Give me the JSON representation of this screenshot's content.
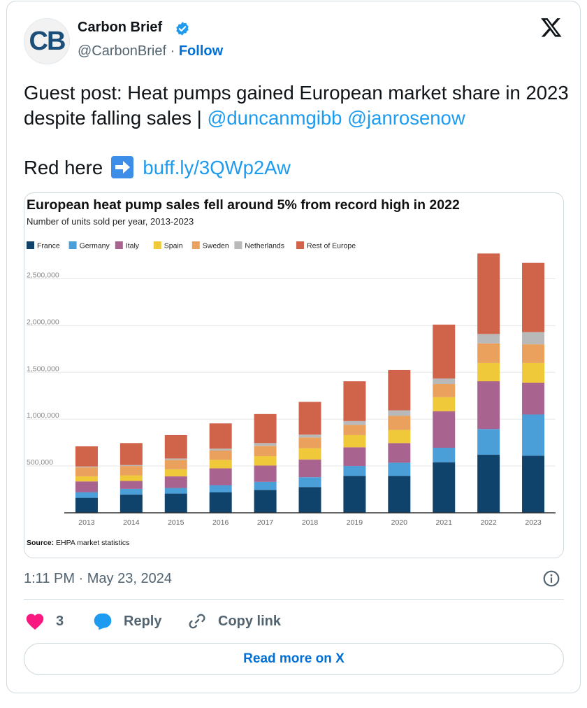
{
  "author": {
    "name": "Carbon Brief",
    "avatar_initials": "CB",
    "handle": "@CarbonBrief",
    "separator": "·",
    "follow_label": "Follow"
  },
  "tweet": {
    "text_main": "Guest post: Heat pumps gained European market share in 2023 despite falling sales |",
    "mentions": [
      "@duncanmgibb",
      "@janrosenow"
    ],
    "read_label": "Red here",
    "link_text": "buff.ly/3QWp2Aw",
    "timestamp": "1:11 PM · May 23, 2024"
  },
  "actions": {
    "like_count": "3",
    "reply_label": "Reply",
    "copy_label": "Copy link",
    "read_more_label": "Read more on X"
  },
  "colors": {
    "link": "#1d9bf0",
    "follow": "#006fd6",
    "like": "#f91880",
    "reply": "#1d9bf0"
  },
  "chart_data": {
    "type": "bar",
    "stacked": true,
    "title": "European heat pump sales fell around 5% from record high in 2022",
    "subtitle": "Number of units sold per year, 2013-2023",
    "source_label": "Source:",
    "source_text": "EHPA market statistics",
    "categories": [
      "2013",
      "2014",
      "2015",
      "2016",
      "2017",
      "2018",
      "2019",
      "2020",
      "2021",
      "2022",
      "2023"
    ],
    "ylim": [
      0,
      2750000
    ],
    "yticks": [
      500000,
      1000000,
      1500000,
      2000000,
      2500000
    ],
    "ytick_labels": [
      "500,000",
      "1,000,000",
      "1,500,000",
      "2,000,000",
      "2,500,000"
    ],
    "series": [
      {
        "name": "France",
        "color": "#0f436b",
        "values": [
          160000,
          195000,
          205000,
          220000,
          245000,
          275000,
          395000,
          395000,
          540000,
          620000,
          610000
        ]
      },
      {
        "name": "Germany",
        "color": "#4a9fd8",
        "values": [
          60000,
          60000,
          60000,
          75000,
          85000,
          105000,
          105000,
          140000,
          155000,
          275000,
          440000
        ]
      },
      {
        "name": "Italy",
        "color": "#a8638f",
        "values": [
          115000,
          85000,
          125000,
          180000,
          175000,
          190000,
          200000,
          210000,
          390000,
          510000,
          340000
        ]
      },
      {
        "name": "Spain",
        "color": "#f0c93a",
        "values": [
          55000,
          60000,
          75000,
          90000,
          100000,
          120000,
          130000,
          140000,
          150000,
          195000,
          210000
        ]
      },
      {
        "name": "Sweden",
        "color": "#e9a15d",
        "values": [
          95000,
          100000,
          100000,
          100000,
          110000,
          115000,
          110000,
          150000,
          140000,
          210000,
          200000
        ]
      },
      {
        "name": "Netherlands",
        "color": "#b9b9b9",
        "values": [
          10000,
          10000,
          15000,
          20000,
          30000,
          30000,
          40000,
          60000,
          60000,
          100000,
          130000
        ]
      },
      {
        "name": "Rest of Europe",
        "color": "#d0644a",
        "values": [
          215000,
          235000,
          250000,
          270000,
          310000,
          350000,
          425000,
          430000,
          575000,
          860000,
          740000
        ]
      }
    ]
  }
}
